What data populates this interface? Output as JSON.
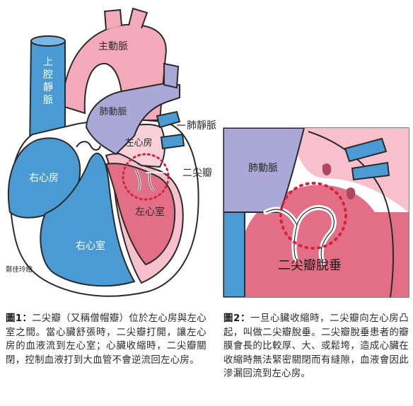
{
  "figure1": {
    "labels": {
      "svc": "上腔靜脈",
      "aorta": "主動脈",
      "pa": "肺動脈",
      "pv": "肺靜脈",
      "la": "左心房",
      "mitral": "二尖瓣",
      "ra": "右心房",
      "lv": "左心室",
      "rv": "右心室"
    },
    "credit": "鄭佳玲繪"
  },
  "figure2": {
    "labels": {
      "pa": "肺動脈",
      "mvp": "二尖瓣脫垂"
    }
  },
  "captions": {
    "fig1_lead": "圖1：",
    "fig1_text": "二尖瓣（又稱僧帽瓣）位於左心房與左心室之間。當心臟舒張時，二尖瓣打開，讓左心房的血液流到左心室；心臟收縮時，二尖瓣關閉，控制血液打到大血管不會逆流回左心房。",
    "fig2_lead": "圖2：",
    "fig2_text": "一旦心臟收縮時，二尖瓣向左心房凸起，叫做二尖瓣脫垂。二尖瓣脫垂患者的瓣膜會長的比較厚、大、或鬆垮，造成心臟在收縮時無法緊密關閉而有縫隙，血液會因此滲漏回流到左心房。"
  },
  "colors": {
    "venous_blue": "#4a9ad4",
    "arterial_pink": "#f0a2b2",
    "lv_red": "#e36f86",
    "pa_lavender": "#a9a8d6",
    "outline": "#2b2b2b",
    "dotted_circle": "#d6233b"
  }
}
